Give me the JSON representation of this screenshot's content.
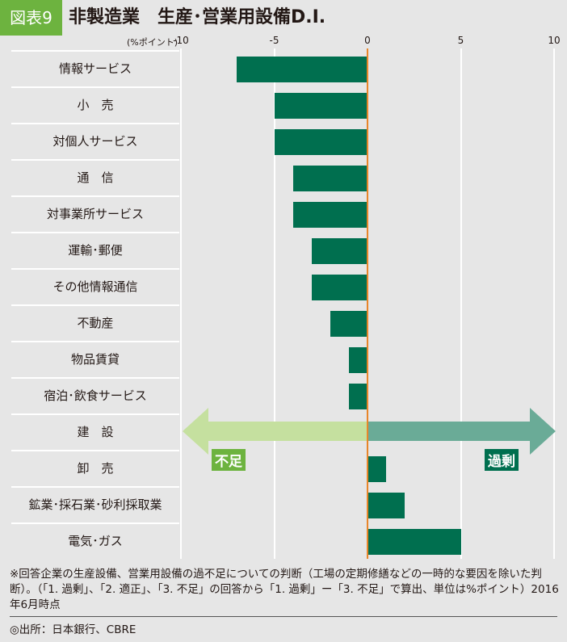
{
  "header": {
    "badge": "図表9",
    "title": "非製造業　生産･営業用設備D.I."
  },
  "chart_data": {
    "type": "bar",
    "orientation": "horizontal",
    "unit_label": "(%ポイント)",
    "xlim": [
      -10,
      10
    ],
    "xticks": [
      "-10",
      "-5",
      "0",
      "5",
      "10"
    ],
    "categories": [
      "情報サービス",
      "小　売",
      "対個人サービス",
      "通　信",
      "対事業所サービス",
      "運輸･郵便",
      "その他情報通信",
      "不動産",
      "物品賃貸",
      "宿泊･飲食サービス",
      "建　設",
      "卸　売",
      "鉱業･採石業･砂利採取業",
      "電気･ガス"
    ],
    "values": [
      -7,
      -5,
      -5,
      -4,
      -4,
      -3,
      -3,
      -2,
      -1,
      -1,
      0,
      1,
      2,
      5
    ],
    "bar_color": "#006f4f",
    "zero_line_color": "#e8862a",
    "annotations": {
      "left": "不足",
      "right": "過剰",
      "left_color": "#c5e09f",
      "right_color": "#6aab97"
    }
  },
  "notes": "※回答企業の生産設備、営業用設備の過不足についての判断（工場の定期修繕などの一時的な要因を除いた判断）。（「1. 過剰」、「2. 適正」、「3. 不足」の回答から「1. 過剰」ー「3. 不足」で算出、単位は%ポイント）2016年6月時点",
  "source": "◎出所：日本銀行、CBRE"
}
